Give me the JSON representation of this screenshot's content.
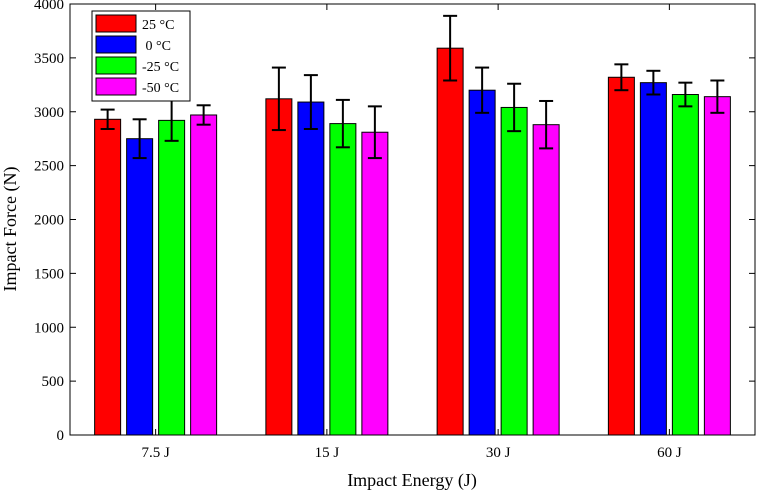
{
  "chart_data": {
    "type": "bar",
    "title": "",
    "xlabel": "Impact Energy (J)",
    "ylabel": "Impact Force (N)",
    "categories": [
      "7.5 J",
      "15 J",
      "30 J",
      "60 J"
    ],
    "ylim": [
      0,
      4000
    ],
    "yticks": [
      0,
      500,
      1000,
      1500,
      2000,
      2500,
      3000,
      3500,
      4000
    ],
    "legend_position": "top-left",
    "series": [
      {
        "name": "25 °C",
        "color": "#ff0000",
        "values": [
          2930,
          3120,
          3590,
          3320
        ],
        "errors": [
          90,
          290,
          300,
          120
        ]
      },
      {
        "name": " 0 °C",
        "color": "#0000ff",
        "values": [
          2750,
          3090,
          3200,
          3270
        ],
        "errors": [
          180,
          250,
          210,
          110
        ]
      },
      {
        "name": "-25 °C",
        "color": "#00ff00",
        "values": [
          2920,
          2890,
          3040,
          3160
        ],
        "errors": [
          190,
          220,
          220,
          110
        ]
      },
      {
        "name": "-50 °C",
        "color": "#ff00ff",
        "values": [
          2970,
          2810,
          2880,
          3140
        ],
        "errors": [
          90,
          240,
          220,
          150
        ]
      }
    ]
  }
}
